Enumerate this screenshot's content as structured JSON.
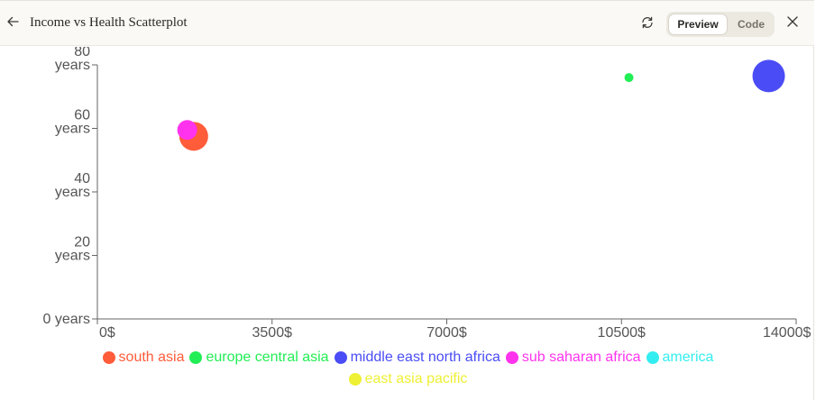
{
  "header": {
    "title": "Income vs Health Scatterplot",
    "icons": {
      "back": "arrow-left-icon",
      "refresh": "refresh-icon",
      "close": "close-icon"
    },
    "tabs": [
      {
        "label": "Preview",
        "active": true
      },
      {
        "label": "Code",
        "active": false
      }
    ]
  },
  "chart_data": {
    "type": "scatter",
    "title": "",
    "xlabel": "",
    "ylabel": "",
    "xlim": [
      0,
      14000
    ],
    "ylim": [
      0,
      80
    ],
    "x_ticks": [
      {
        "value": 0,
        "label": "0$"
      },
      {
        "value": 3500,
        "label": "3500$"
      },
      {
        "value": 7000,
        "label": "7000$"
      },
      {
        "value": 10500,
        "label": "10500$"
      },
      {
        "value": 14000,
        "label": "14000$"
      }
    ],
    "y_ticks": [
      {
        "value": 0,
        "lines": [
          "0 years"
        ]
      },
      {
        "value": 20,
        "lines": [
          "20",
          "years"
        ]
      },
      {
        "value": 40,
        "lines": [
          "40",
          "years"
        ]
      },
      {
        "value": 60,
        "lines": [
          "60",
          "years"
        ]
      },
      {
        "value": 80,
        "lines": [
          "80",
          "years"
        ]
      }
    ],
    "grid": false,
    "legend_position": "bottom",
    "series": [
      {
        "name": "south asia",
        "color": "#ff5c3a",
        "points": [
          {
            "x": 1930,
            "y": 57.5,
            "size": 16
          }
        ]
      },
      {
        "name": "europe central asia",
        "color": "#22ee55",
        "points": [
          {
            "x": 10650,
            "y": 76,
            "size": 5
          }
        ]
      },
      {
        "name": "middle east north africa",
        "color": "#4a4cf5",
        "points": [
          {
            "x": 13450,
            "y": 76.5,
            "size": 18
          }
        ]
      },
      {
        "name": "sub saharan africa",
        "color": "#ff33ee",
        "points": [
          {
            "x": 1800,
            "y": 59.5,
            "size": 11
          }
        ]
      },
      {
        "name": "america",
        "color": "#33eef0",
        "points": []
      },
      {
        "name": "east asia pacific",
        "color": "#eef033",
        "points": []
      }
    ]
  }
}
